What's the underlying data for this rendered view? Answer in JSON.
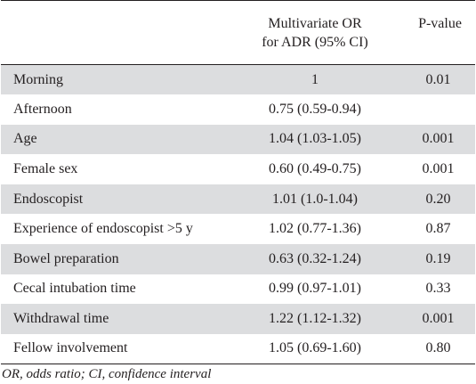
{
  "table": {
    "header": {
      "stub": "",
      "or_line1": "Multivariate OR",
      "or_line2": "for ADR (95% CI)",
      "pvalue": "P-value"
    },
    "rows": [
      {
        "label": "Morning",
        "or": "1",
        "p": "0.01"
      },
      {
        "label": "Afternoon",
        "or": "0.75 (0.59-0.94)",
        "p": ""
      },
      {
        "label": "Age",
        "or": "1.04 (1.03-1.05)",
        "p": "0.001"
      },
      {
        "label": "Female sex",
        "or": "0.60 (0.49-0.75)",
        "p": "0.001"
      },
      {
        "label": "Endoscopist",
        "or": "1.01 (1.0-1.04)",
        "p": "0.20"
      },
      {
        "label": "Experience of endoscopist >5 y",
        "or": "1.02 (0.77-1.36)",
        "p": "0.87"
      },
      {
        "label": "Bowel preparation",
        "or": "0.63 (0.32-1.24)",
        "p": "0.19"
      },
      {
        "label": "Cecal intubation time",
        "or": "0.99 (0.97-1.01)",
        "p": "0.33"
      },
      {
        "label": "Withdrawal time",
        "or": "1.22 (1.12-1.32)",
        "p": "0.001"
      },
      {
        "label": "Fellow involvement",
        "or": "1.05 (0.69-1.60)",
        "p": "0.80"
      }
    ],
    "footnote": "OR, odds ratio; CI, confidence interval"
  },
  "colors": {
    "shaded_row": "#dcdddf",
    "text": "#231f20",
    "rule": "#231f20"
  }
}
